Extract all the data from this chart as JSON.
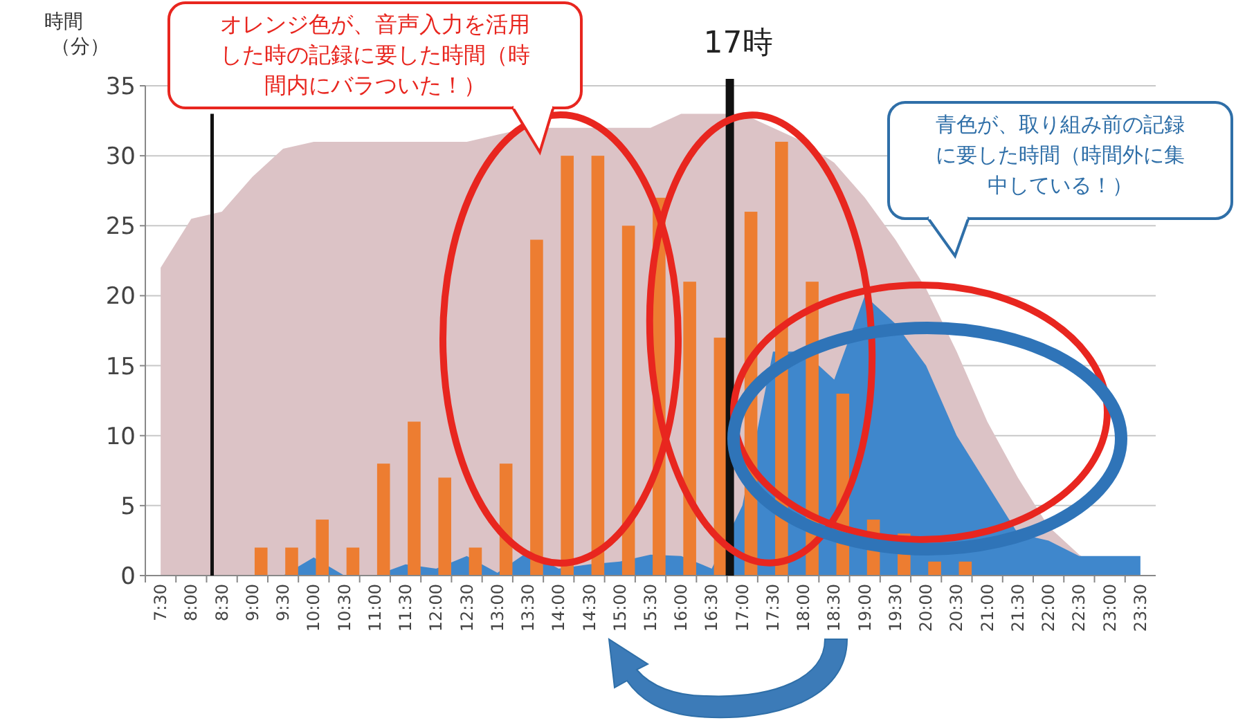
{
  "chart_data": {
    "type": "bar",
    "ylabel": "時間（分）",
    "categories": [
      "7:30",
      "8:00",
      "8:30",
      "9:00",
      "9:30",
      "10:00",
      "10:30",
      "11:00",
      "11:30",
      "12:00",
      "12:30",
      "13:00",
      "13:30",
      "14:00",
      "14:30",
      "15:00",
      "15:30",
      "16:00",
      "16:30",
      "17:00",
      "17:30",
      "18:00",
      "18:30",
      "19:00",
      "19:30",
      "20:00",
      "20:30",
      "21:00",
      "21:30",
      "22:00",
      "22:30",
      "23:00",
      "23:30"
    ],
    "series": [
      {
        "type": "area",
        "color": "#dcc3c6",
        "values": [
          22,
          25.5,
          26,
          28.5,
          30.5,
          31,
          31,
          31,
          31,
          31,
          31,
          31.5,
          32,
          32,
          32,
          32,
          32,
          33,
          33,
          33,
          32,
          31,
          29.5,
          27,
          24,
          20.5,
          16,
          11,
          7,
          3.5,
          1.5,
          0,
          0
        ]
      },
      {
        "type": "area",
        "color": "#3f87cc",
        "values": [
          0,
          0,
          0,
          0,
          0,
          1.3,
          0,
          0,
          0.8,
          0.5,
          1.4,
          0.2,
          1.7,
          0.5,
          0.8,
          1,
          1.5,
          1.4,
          0.5,
          5,
          16,
          16,
          14,
          20,
          18,
          15,
          10,
          6.5,
          3,
          2.5,
          1.4,
          1.4,
          1.4
        ]
      },
      {
        "color": "#ed7d31",
        "values": [
          0,
          0,
          0,
          2,
          2,
          4,
          2,
          8,
          11,
          7,
          2,
          8,
          24,
          30,
          30,
          25,
          27,
          21,
          17,
          26,
          31,
          21,
          13,
          4,
          3,
          1,
          1,
          0,
          0,
          0,
          0,
          0,
          0
        ]
      }
    ],
    "ylim": [
      0,
      35
    ],
    "yticks": [
      0,
      5,
      10,
      15,
      20,
      25,
      30,
      35
    ],
    "grid": "y",
    "ref_lines": [
      {
        "axis": "x",
        "value": "8:30",
        "color": "#111111"
      },
      {
        "axis": "x",
        "value": "17:00",
        "label": "17時",
        "color": "#111111"
      }
    ],
    "annotations": [
      "オレンジ色が、音声入力を活用した時の記録に要した時間（時間内にバラついた！）",
      "青色が、取り組み前の記録に要した時間（時間外に集中している！）"
    ]
  }
}
